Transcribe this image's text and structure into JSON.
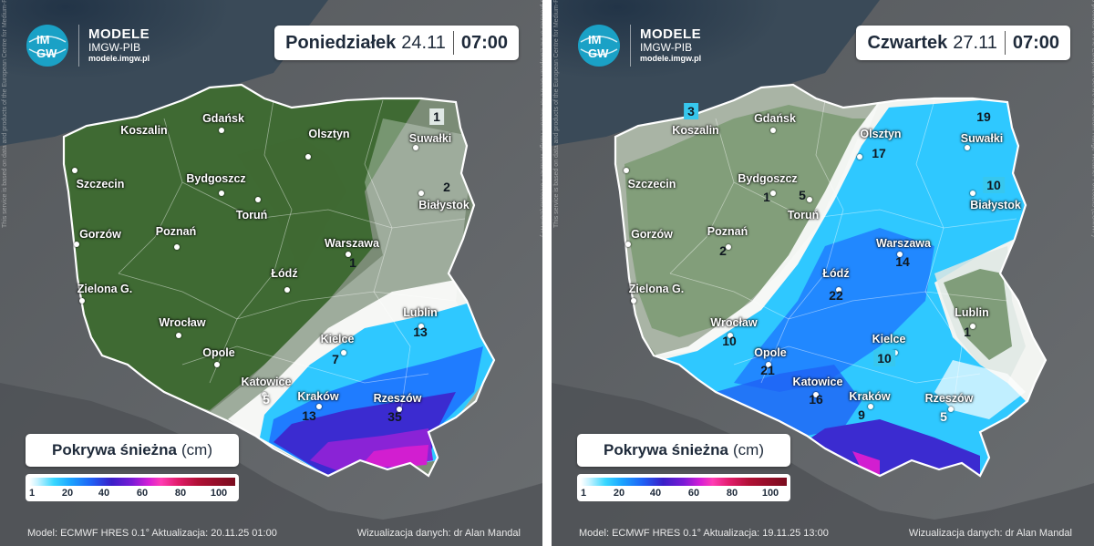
{
  "logo": {
    "title": "MODELE",
    "subtitle": "IMGW-PIB",
    "url": "modele.imgw.pl",
    "mark_text_top": "IM",
    "mark_text_bottom": "GW"
  },
  "panels": [
    {
      "day": "Poniedziałek",
      "date": "24.11",
      "time": "07:00",
      "legend_title_bold": "Pokrywa śnieżna",
      "legend_title_unit": "(cm)",
      "legend_ticks": [
        "1",
        "20",
        "40",
        "60",
        "80",
        "100"
      ],
      "model": "Model: ECMWF HRES 0.1°   Aktualizacja: 20.11.25  01:00",
      "credit": "Wizualizacja danych: dr Alan Mandal",
      "cities": [
        {
          "name": "Koszalin",
          "label": "Koszalin"
        },
        {
          "name": "Gdansk",
          "label": "Gdańsk"
        },
        {
          "name": "Olsztyn",
          "label": "Olsztyn"
        },
        {
          "name": "Suwalki",
          "label": "Suwałki"
        },
        {
          "name": "Szczecin",
          "label": "Szczecin"
        },
        {
          "name": "Bydgoszcz",
          "label": "Bydgoszcz"
        },
        {
          "name": "Torun",
          "label": "Toruń"
        },
        {
          "name": "Bialystok",
          "label": "Białystok"
        },
        {
          "name": "Gorzow",
          "label": "Gorzów"
        },
        {
          "name": "Poznan",
          "label": "Poznań"
        },
        {
          "name": "Warszawa",
          "label": "Warszawa"
        },
        {
          "name": "Lodz",
          "label": "Łódź"
        },
        {
          "name": "ZielonaG",
          "label": "Zielona G."
        },
        {
          "name": "Lublin",
          "label": "Lublin"
        },
        {
          "name": "Wroclaw",
          "label": "Wrocław"
        },
        {
          "name": "Kielce",
          "label": "Kielce"
        },
        {
          "name": "Opole",
          "label": "Opole"
        },
        {
          "name": "Katowice",
          "label": "Katowice"
        },
        {
          "name": "Krakow",
          "label": "Kraków"
        },
        {
          "name": "Rzeszow",
          "label": "Rzeszów"
        }
      ],
      "values": [
        {
          "city": "Suwalki",
          "value": "1"
        },
        {
          "city": "Bialystok",
          "value": "2"
        },
        {
          "city": "Warszawa",
          "value": "1"
        },
        {
          "city": "Lublin",
          "value": "13"
        },
        {
          "city": "Kielce",
          "value": "7"
        },
        {
          "city": "Katowice",
          "value": "5"
        },
        {
          "city": "Krakow",
          "value": "13"
        },
        {
          "city": "Rzeszow",
          "value": "35"
        }
      ]
    },
    {
      "day": "Czwartek",
      "date": "27.11",
      "time": "07:00",
      "legend_title_bold": "Pokrywa śnieżna",
      "legend_title_unit": "(cm)",
      "legend_ticks": [
        "1",
        "20",
        "40",
        "60",
        "80",
        "100"
      ],
      "model": "Model: ECMWF HRES 0.1°   Aktualizacja: 19.11.25  13:00",
      "credit": "Wizualizacja danych: dr Alan Mandal",
      "cities": [
        {
          "name": "Koszalin",
          "label": "Koszalin"
        },
        {
          "name": "Gdansk",
          "label": "Gdańsk"
        },
        {
          "name": "Olsztyn",
          "label": "Olsztyn"
        },
        {
          "name": "Suwalki",
          "label": "Suwałki"
        },
        {
          "name": "Szczecin",
          "label": "Szczecin"
        },
        {
          "name": "Bydgoszcz",
          "label": "Bydgoszcz"
        },
        {
          "name": "Torun",
          "label": "Toruń"
        },
        {
          "name": "Bialystok",
          "label": "Białystok"
        },
        {
          "name": "Gorzow",
          "label": "Gorzów"
        },
        {
          "name": "Poznan",
          "label": "Poznań"
        },
        {
          "name": "Warszawa",
          "label": "Warszawa"
        },
        {
          "name": "Lodz",
          "label": "Łódź"
        },
        {
          "name": "ZielonaG",
          "label": "Zielona G."
        },
        {
          "name": "Lublin",
          "label": "Lublin"
        },
        {
          "name": "Wroclaw",
          "label": "Wrocław"
        },
        {
          "name": "Kielce",
          "label": "Kielce"
        },
        {
          "name": "Opole",
          "label": "Opole"
        },
        {
          "name": "Katowice",
          "label": "Katowice"
        },
        {
          "name": "Krakow",
          "label": "Kraków"
        },
        {
          "name": "Rzeszow",
          "label": "Rzeszów"
        }
      ],
      "values": [
        {
          "city": "Koszalin",
          "value": "3"
        },
        {
          "city": "Olsztyn",
          "value": "17"
        },
        {
          "city": "Suwalki",
          "value": "19"
        },
        {
          "city": "Bydgoszcz",
          "value": "1"
        },
        {
          "city": "Torun",
          "value": "5"
        },
        {
          "city": "Bialystok",
          "value": "10"
        },
        {
          "city": "Poznan",
          "value": "2"
        },
        {
          "city": "Warszawa",
          "value": "14"
        },
        {
          "city": "Lodz",
          "value": "22"
        },
        {
          "city": "Lublin",
          "value": "1"
        },
        {
          "city": "Wroclaw",
          "value": "10"
        },
        {
          "city": "Kielce",
          "value": "10"
        },
        {
          "city": "Opole",
          "value": "21"
        },
        {
          "city": "Katowice",
          "value": "16"
        },
        {
          "city": "Krakow",
          "value": "9"
        },
        {
          "city": "Rzeszow",
          "value": "5"
        }
      ]
    }
  ],
  "side_text": "This service is based on data and products of the European Centre for Medium-Range Weather Forecasts (ECMWF)",
  "colors": {
    "sea": "#2c3a49",
    "land_outside": "#5a5d60",
    "green": "#3f6a33",
    "snow_light": "#dfe8e4",
    "snow_blue": "#2fc8ff",
    "snow_deep": "#3b2bd0",
    "snow_magenta": "#d21ed0"
  }
}
